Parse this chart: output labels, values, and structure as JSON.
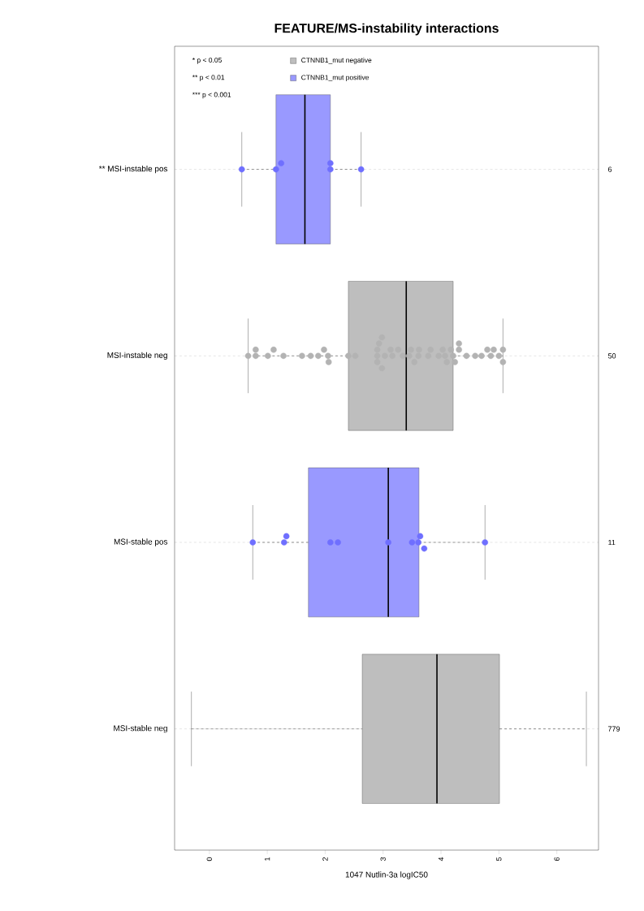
{
  "chart_data": {
    "type": "box",
    "orientation": "horizontal",
    "title": "FEATURE/MS-instability interactions",
    "xlabel": "1047 Nutlin-3a logIC50",
    "categories": [
      "** MSI-instable pos",
      "MSI-instable neg",
      "MSI-stable pos",
      "MSI-stable neg"
    ],
    "xlim": [
      -0.6,
      6.72
    ],
    "xticks": [
      0,
      1,
      2,
      3,
      4,
      5,
      6
    ],
    "grid": "y",
    "legend": "top",
    "marker": "circle",
    "series": [
      {
        "name": "CTNNB1_mut negative",
        "color": "#bebebe",
        "boxes": [
          null,
          {
            "low": 0.67,
            "q1": 2.4,
            "median": 3.4,
            "q3": 4.21,
            "high": 5.07
          },
          null,
          {
            "low": -0.31,
            "q1": 2.64,
            "median": 3.93,
            "q3": 5.01,
            "high": 6.51
          }
        ]
      },
      {
        "name": "CTNNB1_mut positive",
        "color": "#9999ff",
        "boxes": [
          {
            "low": 0.56,
            "q1": 1.15,
            "median": 1.65,
            "q3": 2.09,
            "high": 2.62
          },
          null,
          {
            "low": 0.75,
            "q1": 1.71,
            "median": 3.09,
            "q3": 3.62,
            "high": 4.76
          },
          null
        ]
      },
      {
        "type": "scatter",
        "color": "#b3b3b3",
        "x": [
          "MSI-instable neg",
          "MSI-instable neg",
          "MSI-instable neg",
          "MSI-instable neg",
          "MSI-instable neg",
          "MSI-instable neg",
          "MSI-instable neg",
          "MSI-instable neg",
          "MSI-instable neg",
          "MSI-instable neg",
          "MSI-instable neg",
          "MSI-instable neg",
          "MSI-instable neg",
          "MSI-instable neg",
          "MSI-instable neg",
          "MSI-instable neg",
          "MSI-instable neg",
          "MSI-instable neg",
          "MSI-instable neg",
          "MSI-instable neg",
          "MSI-instable neg",
          "MSI-instable neg",
          "MSI-instable neg",
          "MSI-instable neg",
          "MSI-instable neg",
          "MSI-instable neg",
          "MSI-instable neg",
          "MSI-instable neg",
          "MSI-instable neg",
          "MSI-instable neg",
          "MSI-instable neg",
          "MSI-instable neg",
          "MSI-instable neg",
          "MSI-instable neg",
          "MSI-instable neg",
          "MSI-instable neg",
          "MSI-instable neg",
          "MSI-instable neg",
          "MSI-instable neg",
          "MSI-instable neg",
          "MSI-instable neg",
          "MSI-instable neg",
          "MSI-instable neg",
          "MSI-instable neg",
          "MSI-instable neg",
          "MSI-instable neg",
          "MSI-instable neg",
          "MSI-instable neg",
          "MSI-instable neg",
          "MSI-instable neg"
        ],
        "values": [
          0.67,
          0.8,
          0.8,
          1.01,
          1.11,
          1.28,
          1.6,
          1.75,
          1.88,
          1.98,
          2.05,
          2.06,
          2.4,
          2.52,
          2.9,
          2.9,
          2.9,
          2.93,
          2.98,
          2.98,
          3.03,
          3.13,
          3.16,
          3.26,
          3.34,
          3.45,
          3.48,
          3.54,
          3.61,
          3.62,
          3.78,
          3.82,
          3.96,
          4.03,
          4.07,
          4.1,
          4.17,
          4.21,
          4.24,
          4.31,
          4.31,
          4.44,
          4.59,
          4.7,
          4.8,
          4.86,
          4.91,
          5.0,
          5.07,
          5.07
        ]
      },
      {
        "type": "scatter",
        "color": "#6f6fff",
        "x": [
          "** MSI-instable pos",
          "** MSI-instable pos",
          "** MSI-instable pos",
          "** MSI-instable pos",
          "** MSI-instable pos",
          "** MSI-instable pos",
          "MSI-stable pos",
          "MSI-stable pos",
          "MSI-stable pos",
          "MSI-stable pos",
          "MSI-stable pos",
          "MSI-stable pos",
          "MSI-stable pos",
          "MSI-stable pos",
          "MSI-stable pos",
          "MSI-stable pos",
          "MSI-stable pos"
        ],
        "values": [
          0.56,
          1.15,
          1.24,
          2.09,
          2.09,
          2.62,
          0.75,
          1.29,
          1.33,
          2.09,
          2.22,
          3.09,
          3.5,
          3.61,
          3.64,
          3.71,
          4.76
        ]
      }
    ],
    "annotations": [
      "* p < 0.05",
      "** p < 0.01",
      "*** p < 0.001",
      "6",
      "50",
      "11",
      "779"
    ]
  }
}
